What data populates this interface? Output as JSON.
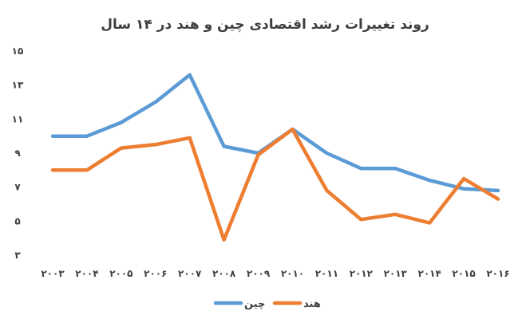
{
  "chart_data": {
    "type": "line",
    "title": "روند تغییرات رشد اقتصادی چین و هند در ۱۴ سال",
    "categories": [
      "۲۰۰۳",
      "۲۰۰۴",
      "۲۰۰۵",
      "۲۰۰۶",
      "۲۰۰۷",
      "۲۰۰۸",
      "۲۰۰۹",
      "۲۰۱۰",
      "۲۰۱۱",
      "۲۰۱۲",
      "۲۰۱۳",
      "۲۰۱۴",
      "۲۰۱۵",
      "۲۰۱۶"
    ],
    "y_ticks": [
      {
        "value": 15,
        "label": "۱۵"
      },
      {
        "value": 13,
        "label": "۱۳"
      },
      {
        "value": 11,
        "label": "۱۱"
      },
      {
        "value": 9,
        "label": "۹"
      },
      {
        "value": 7,
        "label": "۷"
      },
      {
        "value": 5,
        "label": "۵"
      },
      {
        "value": 3,
        "label": "۳"
      }
    ],
    "ylim": [
      3,
      15
    ],
    "grid": false,
    "legend_position": "bottom",
    "series": [
      {
        "name": "چین",
        "color": "#5b9bd5",
        "values": [
          10.0,
          10.0,
          10.8,
          12.0,
          13.6,
          9.4,
          9.0,
          10.4,
          9.0,
          8.1,
          8.1,
          7.4,
          6.9,
          6.8
        ]
      },
      {
        "name": "هند",
        "color": "#ed7d31",
        "values": [
          8.0,
          8.0,
          9.3,
          9.5,
          9.9,
          3.9,
          8.9,
          10.4,
          6.8,
          5.1,
          5.4,
          4.9,
          7.5,
          6.3
        ]
      }
    ]
  }
}
